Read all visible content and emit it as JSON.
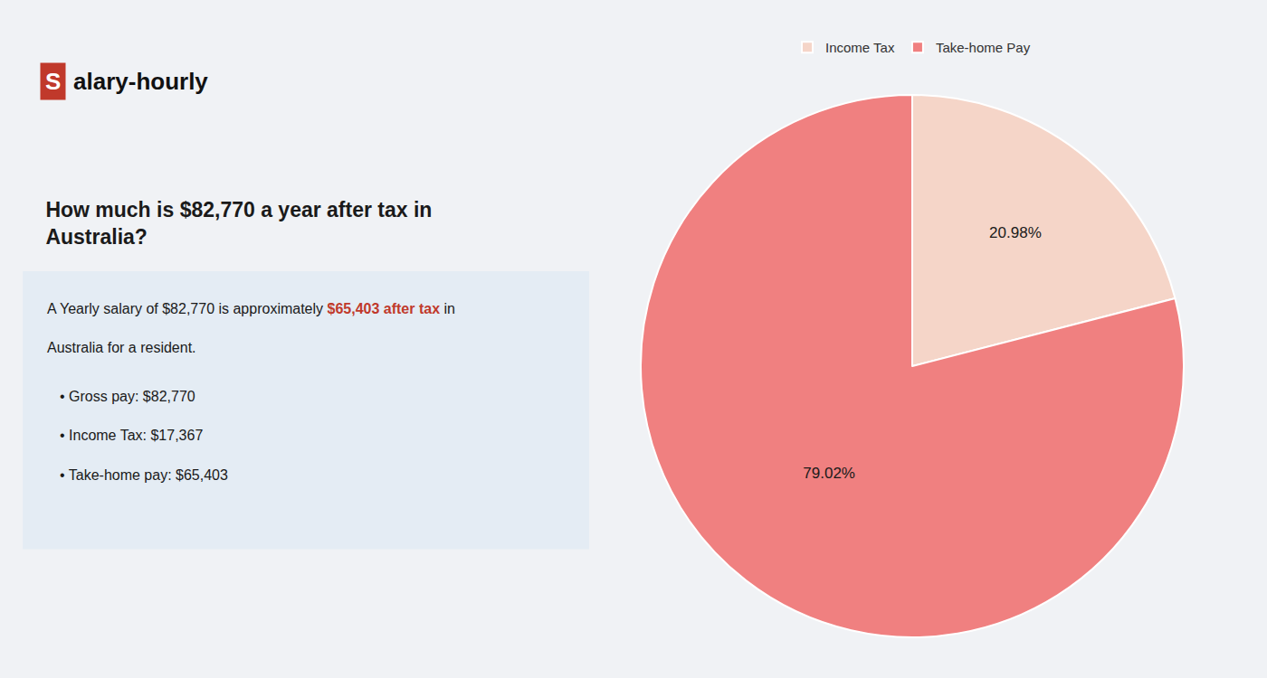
{
  "chart_data": {
    "type": "pie",
    "title": "How much is $82,770 a year after tax in\nAustralia?",
    "categories": [
      "Income Tax",
      "Take-home Pay"
    ],
    "values": [
      20.98,
      79.02
    ],
    "value_labels": [
      "20.98%",
      "79.02%"
    ],
    "colors": [
      "#f5d5c8",
      "#f08080"
    ],
    "data_labels": true,
    "legend": "top",
    "annotations": [
      [
        {
          "text": "S",
          "color": "#ffffff",
          "background": "#c0392b"
        },
        {
          "text": "alary-hourly",
          "color": "#111111"
        }
      ],
      [
        {
          "text": "A Yearly salary of $82,770 is approximately "
        },
        {
          "text": "$65,403 after tax",
          "color": "#c0392b"
        },
        {
          "text": " in"
        }
      ],
      [
        {
          "text": "Australia for a resident."
        }
      ],
      [
        {
          "text": "• Gross pay: $82,770"
        }
      ],
      [
        {
          "text": "• Income Tax: $17,367"
        }
      ],
      [
        {
          "text": "• Take-home pay: $65,403"
        }
      ]
    ]
  }
}
